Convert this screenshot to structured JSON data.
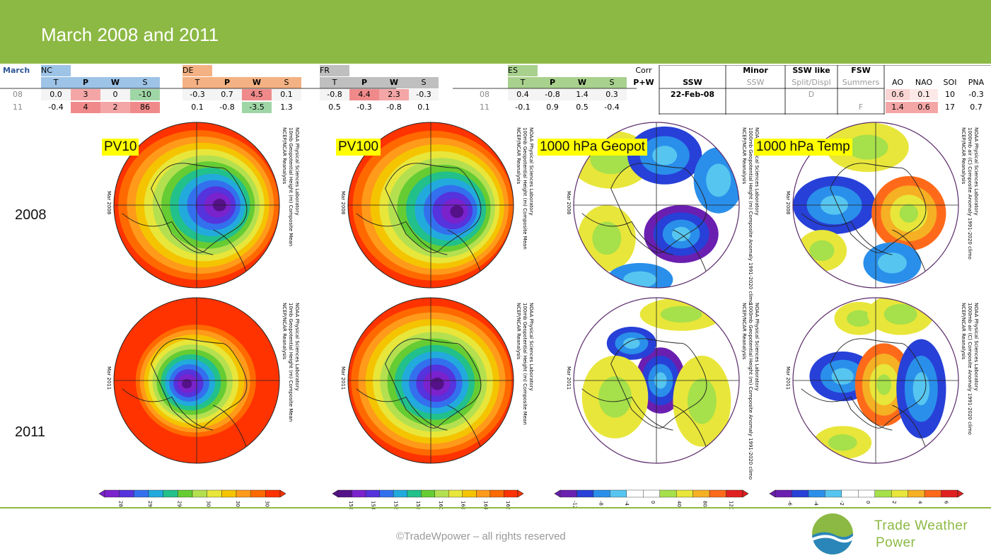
{
  "title": "March 2008 and 2011",
  "table": {
    "month_label": "March",
    "row_labels": [
      "08",
      "11"
    ],
    "groups": [
      {
        "code": "NC",
        "headers": [
          "T",
          "P",
          "W",
          "S"
        ],
        "rows": [
          [
            "0.0",
            "3",
            "0",
            "-10"
          ],
          [
            "-0.4",
            "4",
            "2",
            "86"
          ]
        ]
      },
      {
        "code": "DE",
        "headers": [
          "T",
          "P",
          "W",
          "S"
        ],
        "rows": [
          [
            "-0.3",
            "0.7",
            "4.5",
            "0.1"
          ],
          [
            "0.1",
            "-0.8",
            "-3.5",
            "1.3"
          ]
        ]
      },
      {
        "code": "FR",
        "headers": [
          "T",
          "P",
          "W",
          "S"
        ],
        "rows": [
          [
            "-0.8",
            "4.4",
            "2.3",
            "-0.3"
          ],
          [
            "0.5",
            "-0.3",
            "-0.8",
            "0.1"
          ]
        ]
      },
      {
        "code": "ES",
        "headers": [
          "T",
          "P",
          "W",
          "S"
        ],
        "rows": [
          [
            "0.4",
            "-0.8",
            "1.4",
            "0.3"
          ],
          [
            "-0.1",
            "0.9",
            "0.5",
            "-0.4"
          ]
        ]
      }
    ],
    "corr_label": "Corr",
    "pw_label": "P+W",
    "ssw": {
      "col_top": [
        "",
        "Minor",
        "SSW like",
        "FSW"
      ],
      "col_bottom": [
        "SSW",
        "SSW",
        "Split/Displ",
        "Summers"
      ],
      "row08": [
        "22-Feb-08",
        "",
        "D",
        ""
      ],
      "row11": [
        "",
        "",
        "",
        "F"
      ]
    },
    "indices": {
      "headers": [
        "AO",
        "NAO",
        "SOI",
        "PNA"
      ],
      "row08": [
        "0.6",
        "0.1",
        "10",
        "-0.3"
      ],
      "row11": [
        "1.4",
        "0.6",
        "17",
        "0.7"
      ]
    }
  },
  "year_labels": [
    "2008",
    "2011"
  ],
  "panel_titles": [
    "PV10",
    "PV100",
    "1000 hPa Geopot",
    "1000 hPa Temp"
  ],
  "map_captions": {
    "pv10": [
      "NCEP/NCAR Reanalysis",
      "10mb Geopotential Height (m) Composite Mean",
      "NOAA Physical Sciences Laboratory"
    ],
    "pv100": [
      "NCEP/NCAR Reanalysis",
      "100mb Geopotential Height (m) Composite Mean",
      "NOAA Physical Sciences Laboratory"
    ],
    "geo": [
      "NCEP/NCAR Reanalysis",
      "1000mb Geopotential Height (m) Composite Anomaly 1991-2020 climo",
      "NOAA Physical Sciences Laboratory"
    ],
    "temp": [
      "NCEP/NCAR Reanalysis",
      "1000mb air (C) Composite Anomaly 1991-2020 climo",
      "NOAA Physical Sciences Laboratory"
    ],
    "date08": "Mar 2008",
    "date11": "Mar 2011"
  },
  "colorbars": [
    {
      "labels": [
        "28",
        "29",
        "29",
        "30",
        "30",
        "30"
      ]
    },
    {
      "labels": [
        "152",
        "154",
        "156",
        "158",
        "160",
        "162",
        "164",
        "166"
      ]
    },
    {
      "labels": [
        "-12",
        "-8",
        "-4",
        "0",
        "40",
        "80",
        "120"
      ]
    },
    {
      "labels": [
        "-6",
        "-4",
        "-2",
        "0",
        "2",
        "4",
        "6"
      ]
    }
  ],
  "footer": {
    "copyright": "©TradeWpower – all rights reserved",
    "brand_line1": "Trade Weather",
    "brand_line2": "Power"
  },
  "colors": {
    "green": "#8cb944",
    "nc": "#9dc3e6",
    "de": "#f4b183",
    "fr": "#bfbfbf",
    "es": "#a9d18e",
    "pos": "#f4a6a6",
    "neg": "#9fd6a6"
  }
}
